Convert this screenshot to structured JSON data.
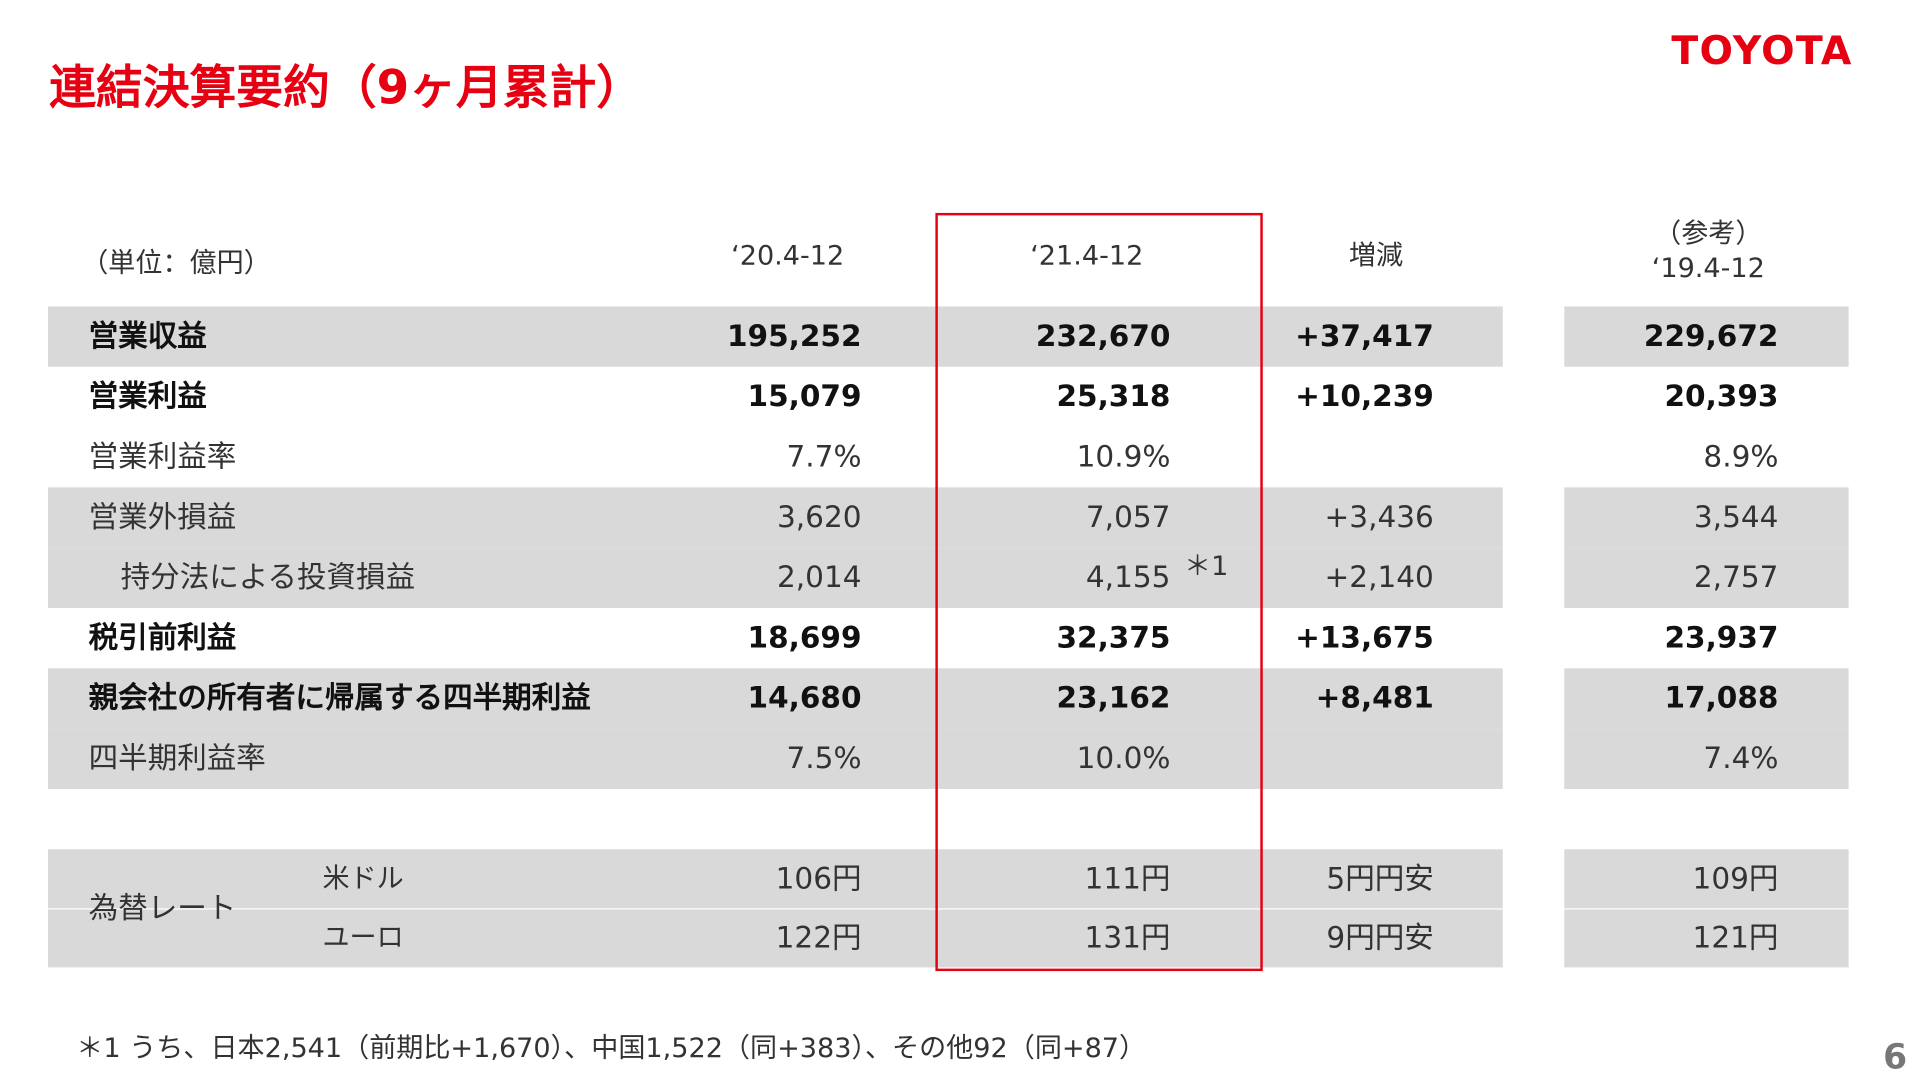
{
  "header": {
    "title": "連結決算要約（9ヶ月累計）",
    "logo": "TOYOTA"
  },
  "table": {
    "unit": "（単位：億円）",
    "columns": [
      "‘20.4-12",
      "‘21.4-12",
      "増減",
      "‘19.4-12"
    ],
    "reference_note": "（参考）",
    "rows": [
      {
        "label": "営業収益",
        "values": [
          "195,252",
          "232,670",
          "+37,417",
          "229,672"
        ],
        "bold": true,
        "shaded": true
      },
      {
        "label": "営業利益",
        "values": [
          "15,079",
          "25,318",
          "+10,239",
          "20,393"
        ],
        "bold": true,
        "shaded": false
      },
      {
        "label": "営業利益率",
        "values": [
          "7.7%",
          "10.9%",
          null,
          "8.9%"
        ],
        "bold": false,
        "shaded": false
      },
      {
        "label": "営業外損益",
        "values": [
          "3,620",
          "7,057",
          "+3,436",
          "3,544"
        ],
        "bold": false,
        "shaded": true
      },
      {
        "label": "持分法による投資損益",
        "values": [
          "2,014",
          "4,155",
          "+2,140",
          "2,757"
        ],
        "bold": false,
        "shaded": true,
        "indent": true,
        "note": "＊1"
      },
      {
        "label": "税引前利益",
        "values": [
          "18,699",
          "32,375",
          "+13,675",
          "23,937"
        ],
        "bold": true,
        "shaded": false
      },
      {
        "label": "親会社の所有者に帰属する四半期利益",
        "values": [
          "14,680",
          "23,162",
          "+8,481",
          "17,088"
        ],
        "bold": true,
        "shaded": true
      },
      {
        "label": "四半期利益率",
        "values": [
          "7.5%",
          "10.0%",
          null,
          "7.4%"
        ],
        "bold": false,
        "shaded": true
      }
    ],
    "fx": {
      "label": "為替レート",
      "rows": [
        {
          "label": "米ドル",
          "values": [
            "106円",
            "111円",
            "5円円安",
            "109円"
          ]
        },
        {
          "label": "ユーロ",
          "values": [
            "122円",
            "131円",
            "9円円安",
            "121円"
          ]
        }
      ]
    }
  },
  "footnote": "＊1 うち、日本2,541（前期比+1,670）、中国1,522（同+383）、その他92（同+87）",
  "page_number": "6"
}
